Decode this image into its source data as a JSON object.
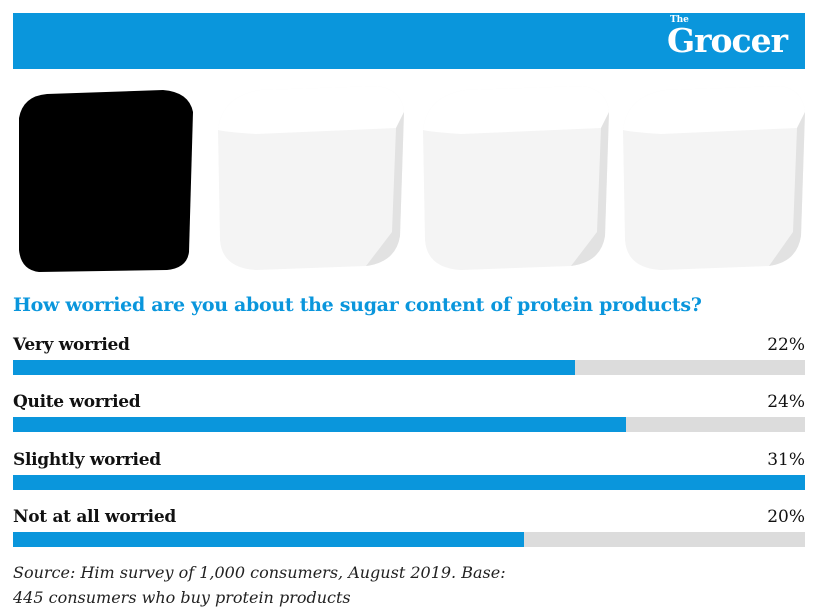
{
  "header": {
    "logo_small": "The",
    "logo": "Grocer",
    "color": "#0a96dc"
  },
  "images": [
    {
      "name": "sugar-cube-icon",
      "color": "#000000"
    },
    {
      "name": "sugar-cube-icon",
      "color": "#f2f2f2"
    },
    {
      "name": "sugar-cube-icon",
      "color": "#f2f2f2"
    },
    {
      "name": "sugar-cube-icon",
      "color": "#f2f2f2"
    }
  ],
  "chart_data": {
    "type": "bar",
    "title": "How worried are you about the sugar content of protein products?",
    "categories": [
      "Very worried",
      "Quite worried",
      "Slightly worried",
      "Not at all worried"
    ],
    "values": [
      22,
      24,
      31,
      20
    ],
    "value_labels": [
      "22%",
      "24%",
      "31%",
      "20%"
    ],
    "unit": "%",
    "xlim": [
      0,
      31
    ],
    "orientation": "horizontal",
    "bar_color": "#0a96dc",
    "track_color": "#dcdcdc",
    "grid": false
  },
  "source": {
    "line1": "Source: Him survey of 1,000 consumers, August 2019. Base:",
    "line2": "445 consumers who buy protein products"
  }
}
